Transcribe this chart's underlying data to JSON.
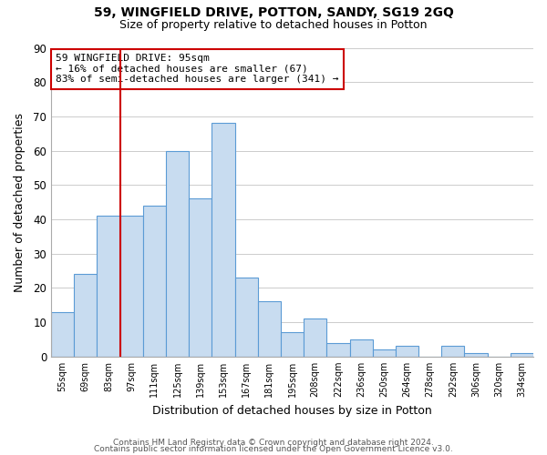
{
  "title": "59, WINGFIELD DRIVE, POTTON, SANDY, SG19 2GQ",
  "subtitle": "Size of property relative to detached houses in Potton",
  "xlabel": "Distribution of detached houses by size in Potton",
  "ylabel": "Number of detached properties",
  "bin_labels": [
    "55sqm",
    "69sqm",
    "83sqm",
    "97sqm",
    "111sqm",
    "125sqm",
    "139sqm",
    "153sqm",
    "167sqm",
    "181sqm",
    "195sqm",
    "208sqm",
    "222sqm",
    "236sqm",
    "250sqm",
    "264sqm",
    "278sqm",
    "292sqm",
    "306sqm",
    "320sqm",
    "334sqm"
  ],
  "bar_heights": [
    13,
    24,
    41,
    41,
    44,
    60,
    46,
    68,
    23,
    16,
    7,
    11,
    4,
    5,
    2,
    3,
    0,
    3,
    1,
    0,
    1
  ],
  "bar_color": "#c8dcf0",
  "bar_edge_color": "#5b9bd5",
  "vline_x_index": 3,
  "vline_color": "#cc0000",
  "annotation_line1": "59 WINGFIELD DRIVE: 95sqm",
  "annotation_line2": "← 16% of detached houses are smaller (67)",
  "annotation_line3": "83% of semi-detached houses are larger (341) →",
  "annotation_box_edge": "#cc0000",
  "ylim": [
    0,
    90
  ],
  "yticks": [
    0,
    10,
    20,
    30,
    40,
    50,
    60,
    70,
    80,
    90
  ],
  "footer_line1": "Contains HM Land Registry data © Crown copyright and database right 2024.",
  "footer_line2": "Contains public sector information licensed under the Open Government Licence v3.0.",
  "bg_color": "#ffffff",
  "grid_color": "#cccccc"
}
